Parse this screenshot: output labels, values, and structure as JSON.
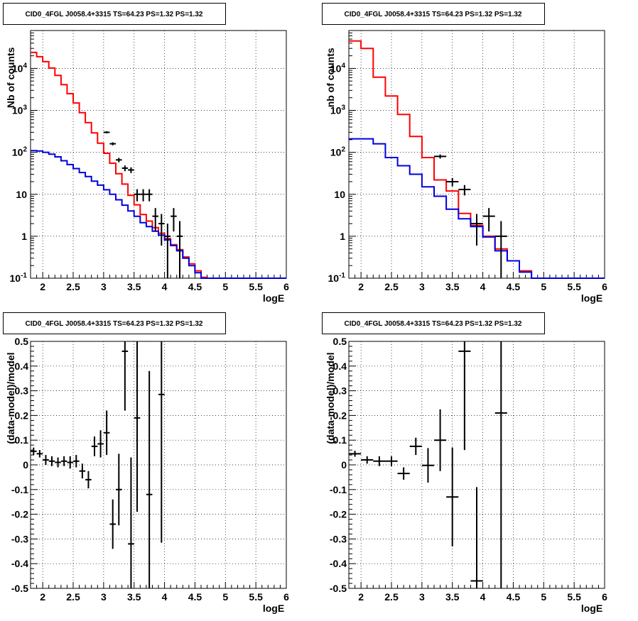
{
  "colors": {
    "data": "#000000",
    "total_model": "#ff0000",
    "source_model": "#0000dd",
    "grid": "#000000"
  },
  "chart_data": [
    {
      "type": "line",
      "title": "CID0_4FGL J0058.4+3315 TS=64.23 PS=1.32 PS=1.32",
      "xlabel": "logE",
      "ylabel": "Nb of counts",
      "xlim": [
        1.8,
        6.0
      ],
      "ylim": [
        0.1,
        80000
      ],
      "yscale": "log",
      "grid": true,
      "xticks": [
        "2",
        "2.5",
        "3",
        "3.5",
        "4",
        "4.5",
        "5",
        "5.5",
        "6"
      ],
      "xtick_values": [
        2,
        2.5,
        3,
        3.5,
        4,
        4.5,
        5,
        5.5,
        6
      ],
      "yticks": [
        "10^-1",
        "1",
        "10",
        "10^2",
        "10^3",
        "10^4"
      ],
      "ytick_values": [
        0.1,
        1,
        10,
        100,
        1000,
        10000
      ],
      "bin_edges": [
        1.8,
        1.9,
        2.0,
        2.1,
        2.2,
        2.3,
        2.4,
        2.5,
        2.6,
        2.7,
        2.8,
        2.9,
        3.0,
        3.1,
        3.2,
        3.3,
        3.4,
        3.5,
        3.6,
        3.7,
        3.8,
        3.9,
        4.0,
        4.1,
        4.2,
        4.3,
        4.4,
        4.5,
        4.6,
        4.7,
        4.8,
        4.9,
        5.0,
        5.1,
        5.2,
        5.3,
        5.4,
        5.5,
        5.6,
        5.7,
        5.8,
        5.9,
        6.0
      ],
      "series": [
        {
          "role": "total_model",
          "values": [
            24000,
            19000,
            14500,
            10200,
            6800,
            4100,
            2500,
            1500,
            880,
            510,
            290,
            165,
            95,
            55,
            31,
            17.5,
            9.4,
            5.6,
            3.3,
            2.3,
            1.6,
            1.18,
            0.88,
            0.63,
            0.48,
            0.32,
            0.22,
            0.15,
            0.105,
            0.1,
            0.1,
            0.1,
            0.1,
            0.1,
            0.1,
            0.1,
            0.1,
            0.1,
            0.1,
            0.1,
            0.1,
            0.1
          ]
        },
        {
          "role": "source_model",
          "values": [
            110,
            108,
            100,
            90,
            78,
            63,
            51,
            41,
            33,
            26.5,
            20.5,
            16.5,
            12.8,
            10,
            7.4,
            5.5,
            4,
            3,
            2.1,
            1.7,
            1.32,
            1.06,
            0.82,
            0.6,
            0.45,
            0.3,
            0.2,
            0.135,
            0.1,
            0.1,
            0.1,
            0.1,
            0.1,
            0.1,
            0.1,
            0.1,
            0.1,
            0.1,
            0.1,
            0.1,
            0.1,
            0.1
          ]
        },
        {
          "role": "data",
          "x": [
            3.05,
            3.15,
            3.25,
            3.35,
            3.45,
            3.55,
            3.65,
            3.75,
            3.85,
            3.95,
            4.05,
            4.15,
            4.25
          ],
          "values": [
            300,
            160,
            66,
            42,
            38,
            10,
            10,
            10,
            3,
            2,
            1,
            3,
            1
          ],
          "yerr_low": [
            17,
            13,
            8,
            6.5,
            6,
            3.2,
            3.2,
            3.2,
            1.7,
            1.4,
            1,
            1.7,
            1
          ],
          "yerr_high": [
            17,
            13,
            8,
            6.5,
            6,
            3.2,
            3.2,
            3.2,
            1.7,
            1.4,
            1,
            1.7,
            1.3
          ]
        }
      ]
    },
    {
      "type": "line",
      "title": "CID0_4FGL J0058.4+3315 TS=64.23 PS=1.32 PS=1.32",
      "xlabel": "logE",
      "ylabel": "nb of counts",
      "xlim": [
        1.8,
        6.0
      ],
      "ylim": [
        0.1,
        80000
      ],
      "yscale": "log",
      "grid": true,
      "xticks": [
        "2",
        "2.5",
        "3",
        "3.5",
        "4",
        "4.5",
        "5",
        "5.5",
        "6"
      ],
      "xtick_values": [
        2,
        2.5,
        3,
        3.5,
        4,
        4.5,
        5,
        5.5,
        6
      ],
      "yticks": [
        "10^-1",
        "1",
        "10",
        "10^2",
        "10^3",
        "10^4"
      ],
      "ytick_values": [
        0.1,
        1,
        10,
        100,
        1000,
        10000
      ],
      "bin_edges": [
        1.8,
        2.0,
        2.2,
        2.4,
        2.6,
        2.8,
        3.0,
        3.2,
        3.4,
        3.6,
        3.8,
        4.0,
        4.2,
        4.4,
        4.6,
        4.8,
        5.0,
        5.2,
        5.4,
        5.6,
        5.8,
        6.0
      ],
      "series": [
        {
          "role": "total_model",
          "values": [
            45000,
            30000,
            6200,
            2200,
            800,
            240,
            75,
            22,
            12,
            3.5,
            1.8,
            1,
            0.5,
            0.26,
            0.15,
            0.1,
            0.1,
            0.1,
            0.1,
            0.1,
            0.1
          ]
        },
        {
          "role": "source_model",
          "values": [
            210,
            210,
            160,
            75,
            48,
            30,
            15,
            9,
            4.4,
            2.6,
            1.7,
            0.96,
            0.45,
            0.26,
            0.14,
            0.1,
            0.1,
            0.1,
            0.1,
            0.1,
            0.1
          ]
        },
        {
          "role": "data",
          "x": [
            3.3,
            3.5,
            3.7,
            3.9,
            4.1,
            4.3
          ],
          "values": [
            80,
            20,
            13,
            2,
            3,
            1
          ],
          "yerr_low": [
            9,
            4.5,
            3.6,
            1.4,
            1.7,
            1
          ],
          "yerr_high": [
            9,
            4.5,
            3.6,
            1.4,
            1.7,
            1.3
          ]
        }
      ]
    },
    {
      "type": "scatter",
      "title": "CID0_4FGL J0058.4+3315 TS=64.23 PS=1.32 PS=1.32",
      "xlabel": "logE",
      "ylabel": "(data-model)/model",
      "xlim": [
        1.8,
        6.0
      ],
      "ylim": [
        -0.5,
        0.5
      ],
      "grid": true,
      "xticks": [
        "2",
        "2.5",
        "3",
        "3.5",
        "4",
        "4.5",
        "5",
        "5.5",
        "6"
      ],
      "xtick_values": [
        2,
        2.5,
        3,
        3.5,
        4,
        4.5,
        5,
        5.5,
        6
      ],
      "yticks": [
        "-0.5",
        "-0.4",
        "-0.3",
        "-0.2",
        "-0.1",
        "0",
        "0.1",
        "0.2",
        "0.3",
        "0.4",
        "0.5"
      ],
      "ytick_values": [
        -0.5,
        -0.4,
        -0.3,
        -0.2,
        -0.1,
        0,
        0.1,
        0.2,
        0.3,
        0.4,
        0.5
      ],
      "x_half_width": 0.05,
      "x": [
        1.85,
        1.95,
        2.05,
        2.15,
        2.25,
        2.35,
        2.45,
        2.55,
        2.65,
        2.75,
        2.85,
        2.95,
        3.05,
        3.15,
        3.25,
        3.35,
        3.45,
        3.55,
        3.75,
        3.95
      ],
      "values": [
        0.055,
        0.045,
        0.02,
        0.015,
        0.01,
        0.015,
        0.01,
        0.015,
        -0.025,
        -0.06,
        0.075,
        0.085,
        0.13,
        -0.24,
        -0.1,
        0.46,
        -0.32,
        0.19,
        -0.12,
        0.285
      ],
      "yerr": [
        0.015,
        0.015,
        0.02,
        0.02,
        0.02,
        0.02,
        0.025,
        0.025,
        0.03,
        0.035,
        0.04,
        0.055,
        0.09,
        0.1,
        0.145,
        0.24,
        0.35,
        0.38,
        0.5,
        0.6
      ]
    },
    {
      "type": "scatter",
      "title": "CID0_4FGL J0058.4+3315 TS=64.23 PS=1.32 PS=1.32",
      "xlabel": "logE",
      "ylabel": "(data-model)/model",
      "xlim": [
        1.8,
        6.0
      ],
      "ylim": [
        -0.5,
        0.5
      ],
      "grid": true,
      "xticks": [
        "2",
        "2.5",
        "3",
        "3.5",
        "4",
        "4.5",
        "5",
        "5.5",
        "6"
      ],
      "xtick_values": [
        2,
        2.5,
        3,
        3.5,
        4,
        4.5,
        5,
        5.5,
        6
      ],
      "yticks": [
        "-0.5",
        "-0.4",
        "-0.3",
        "-0.2",
        "-0.1",
        "0",
        "0.1",
        "0.2",
        "0.3",
        "0.4",
        "0.5"
      ],
      "ytick_values": [
        -0.5,
        -0.4,
        -0.3,
        -0.2,
        -0.1,
        0,
        0.1,
        0.2,
        0.3,
        0.4,
        0.5
      ],
      "x_half_width": 0.1,
      "x": [
        1.9,
        2.1,
        2.3,
        2.5,
        2.7,
        2.9,
        3.1,
        3.3,
        3.5,
        3.7,
        3.9,
        4.3
      ],
      "values": [
        0.045,
        0.02,
        0.015,
        0.015,
        -0.035,
        0.075,
        -0.002,
        0.1,
        -0.13,
        0.46,
        -0.47,
        0.21
      ],
      "yerr": [
        0.012,
        0.015,
        0.02,
        0.02,
        0.025,
        0.035,
        0.07,
        0.125,
        0.2,
        0.4,
        0.38,
        1.0
      ]
    }
  ]
}
